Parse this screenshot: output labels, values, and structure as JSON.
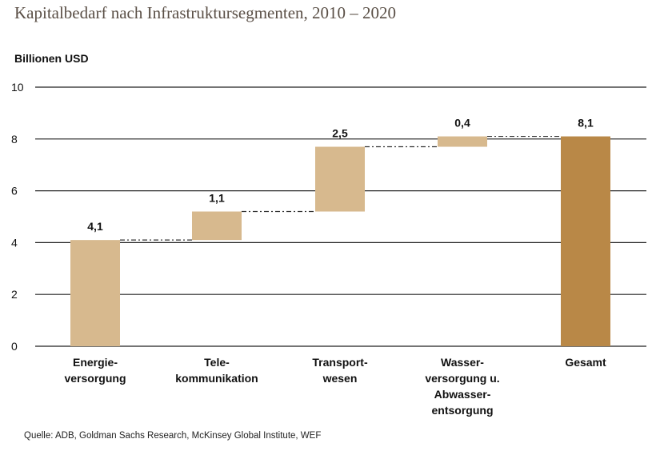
{
  "title": "Kapitalbedarf nach Infrastruktursegmenten, 2010 – 2020",
  "source": "Quelle: ADB, Goldman Sachs Research, McKinsey Global Institute, WEF",
  "colors": {
    "segment": "#d7b98e",
    "total": "#b98847",
    "grid": "#222222",
    "connector": "#333333"
  },
  "chart_data": {
    "type": "bar",
    "subtype": "waterfall",
    "title": "Kapitalbedarf nach Infrastruktursegmenten, 2010 – 2020",
    "xlabel": "",
    "ylabel": "Billionen USD",
    "ylim": [
      0,
      10
    ],
    "yticks": [
      0,
      2,
      4,
      6,
      8,
      10
    ],
    "grid": true,
    "categories": [
      [
        "Energie-",
        "versorgung"
      ],
      [
        "Tele-",
        "kommunikation"
      ],
      [
        "Transport-",
        "wesen"
      ],
      [
        "Wasser-",
        "versorgung u.",
        "Abwasser-",
        "entsorgung"
      ],
      [
        "Gesamt"
      ]
    ],
    "values": [
      4.1,
      1.1,
      2.5,
      0.4,
      8.1
    ],
    "labels": [
      "4,1",
      "1,1",
      "2,5",
      "0,4",
      "8,1"
    ],
    "is_total": [
      false,
      false,
      false,
      false,
      true
    ]
  }
}
